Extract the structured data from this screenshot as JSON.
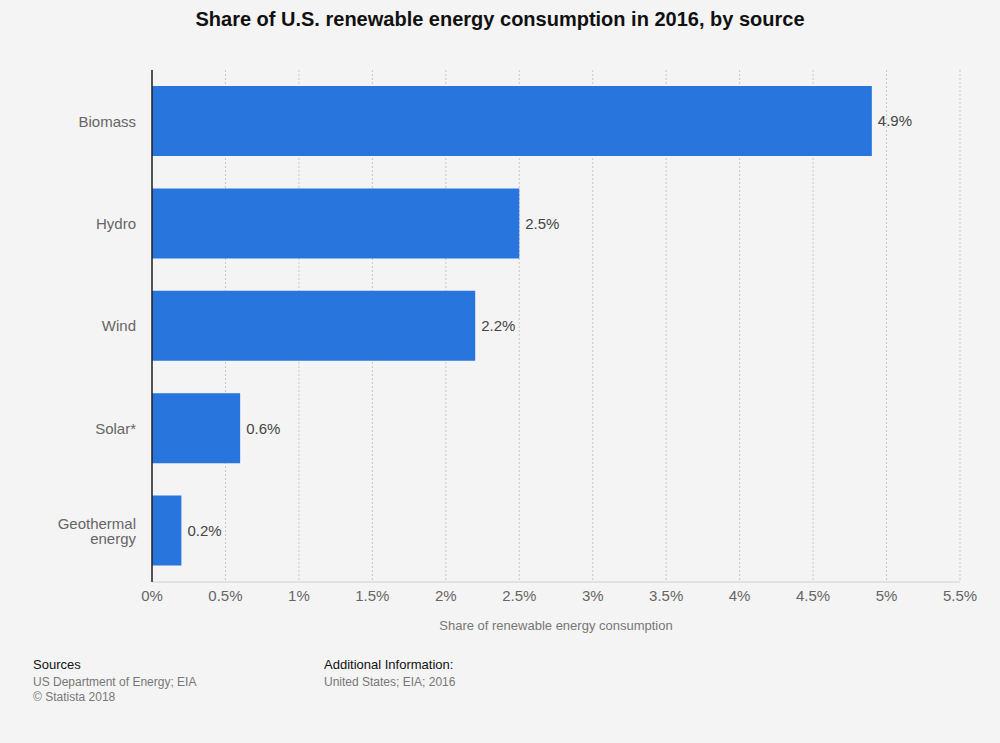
{
  "chart_data": {
    "type": "bar",
    "title": "Share of U.S. renewable energy consumption in 2016, by source",
    "orientation": "horizontal",
    "categories": [
      "Biomass",
      "Hydro",
      "Wind",
      "Solar*",
      "Geothermal energy"
    ],
    "values": [
      4.9,
      2.5,
      2.2,
      0.6,
      0.2
    ],
    "value_labels": [
      "4.9%",
      "2.5%",
      "2.2%",
      "0.6%",
      "0.2%"
    ],
    "data_labels": true,
    "color": "#2876dd",
    "xlabel": "Share of renewable energy consumption",
    "xlim": [
      0,
      5.5
    ],
    "xticks": [
      {
        "value": 0,
        "label": "0%"
      },
      {
        "value": 0.5,
        "label": "0.5%"
      },
      {
        "value": 1,
        "label": "1%"
      },
      {
        "value": 1.5,
        "label": "1.5%"
      },
      {
        "value": 2,
        "label": "2%"
      },
      {
        "value": 2.5,
        "label": "2.5%"
      },
      {
        "value": 3,
        "label": "3%"
      },
      {
        "value": 3.5,
        "label": "3.5%"
      },
      {
        "value": 4,
        "label": "4%"
      },
      {
        "value": 4.5,
        "label": "4.5%"
      },
      {
        "value": 5,
        "label": "5%"
      },
      {
        "value": 5.5,
        "label": "5.5%"
      }
    ],
    "grid": true,
    "sources_title": "Sources",
    "sources": [
      "US Department of Energy; EIA",
      "© Statista 2018"
    ],
    "additional_info_title": "Additional Information:",
    "additional_info": "United States; EIA; 2016"
  }
}
